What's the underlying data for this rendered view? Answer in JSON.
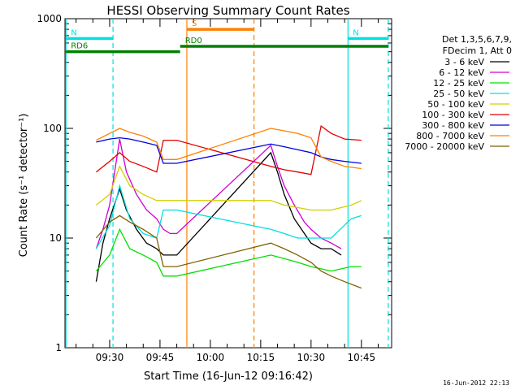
{
  "chart_data": {
    "type": "line",
    "title": "HESSI Observing Summary Count Rates",
    "xlabel": "Start Time (16-Jun-12 09:16:42)",
    "ylabel": "Count Rate (s⁻¹ detector⁻¹)",
    "yscale": "log",
    "ylim": [
      1,
      1000
    ],
    "xlim": [
      "09:16:42",
      "10:54"
    ],
    "x_ticks": [
      "09:30",
      "09:45",
      "10:00",
      "10:15",
      "10:30",
      "10:45"
    ],
    "y_ticks": [
      "1",
      "10",
      "100",
      "1000"
    ],
    "legend_position": "right",
    "legend_header": [
      "Det 1,3,5,6,7,9,",
      "FDecim 1, Att 0"
    ],
    "series": [
      {
        "name": "3 - 6 keV",
        "color": "#000000",
        "x": [
          "09:26",
          "09:28",
          "09:30",
          "09:33",
          "09:35",
          "09:38",
          "09:41",
          "09:44",
          "09:46",
          "09:48",
          "09:50",
          "10:18",
          "10:20",
          "10:22",
          "10:25",
          "10:28",
          "10:30",
          "10:33",
          "10:36",
          "10:39"
        ],
        "values": [
          4,
          9,
          15,
          28,
          18,
          12,
          9,
          8,
          7,
          7,
          7,
          60,
          40,
          25,
          15,
          11,
          9,
          8,
          8,
          7
        ]
      },
      {
        "name": "6 - 12 keV",
        "color": "#d000d0",
        "x": [
          "09:26",
          "09:28",
          "09:30",
          "09:33",
          "09:35",
          "09:38",
          "09:41",
          "09:44",
          "09:46",
          "09:48",
          "09:50",
          "10:18",
          "10:20",
          "10:22",
          "10:25",
          "10:28",
          "10:30",
          "10:33",
          "10:36",
          "10:39"
        ],
        "values": [
          8,
          12,
          20,
          80,
          40,
          25,
          18,
          15,
          12,
          11,
          11,
          70,
          45,
          30,
          20,
          14,
          12,
          10,
          9,
          8
        ]
      },
      {
        "name": "12 - 25 keV",
        "color": "#00e000",
        "x": [
          "09:26",
          "09:30",
          "09:33",
          "09:36",
          "09:40",
          "09:44",
          "09:46",
          "09:50",
          "10:18",
          "10:22",
          "10:26",
          "10:30",
          "10:36",
          "10:42",
          "10:45"
        ],
        "values": [
          5,
          7,
          12,
          8,
          7,
          6,
          4.5,
          4.5,
          7,
          6.5,
          6,
          5.5,
          5,
          5.5,
          5.5
        ]
      },
      {
        "name": "25 - 50 keV",
        "color": "#00e0e0",
        "x": [
          "09:26",
          "09:30",
          "09:33",
          "09:36",
          "09:40",
          "09:44",
          "09:46",
          "09:50",
          "10:18",
          "10:22",
          "10:26",
          "10:30",
          "10:36",
          "10:42",
          "10:45"
        ],
        "values": [
          8,
          13,
          30,
          15,
          11,
          10,
          18,
          18,
          12,
          11,
          10,
          10,
          10,
          15,
          16
        ]
      },
      {
        "name": "50 - 100 keV",
        "color": "#d0d000",
        "x": [
          "09:26",
          "09:30",
          "09:33",
          "09:36",
          "09:40",
          "09:44",
          "09:46",
          "09:50",
          "10:18",
          "10:22",
          "10:26",
          "10:30",
          "10:36",
          "10:42",
          "10:45"
        ],
        "values": [
          20,
          25,
          45,
          30,
          25,
          22,
          22,
          22,
          22,
          20,
          19,
          18,
          18,
          20,
          22
        ]
      },
      {
        "name": "100 - 300 keV",
        "color": "#e00000",
        "x": [
          "09:26",
          "09:30",
          "09:33",
          "09:36",
          "09:40",
          "09:44",
          "09:46",
          "09:50",
          "10:18",
          "10:22",
          "10:26",
          "10:30",
          "10:33",
          "10:36",
          "10:40",
          "10:45"
        ],
        "values": [
          40,
          50,
          60,
          50,
          45,
          40,
          78,
          78,
          45,
          42,
          40,
          38,
          105,
          90,
          80,
          78
        ]
      },
      {
        "name": "300 - 800 keV",
        "color": "#0000e0",
        "x": [
          "09:26",
          "09:30",
          "09:33",
          "09:36",
          "09:40",
          "09:44",
          "09:46",
          "09:50",
          "10:18",
          "10:22",
          "10:26",
          "10:30",
          "10:33",
          "10:36",
          "10:40",
          "10:45"
        ],
        "values": [
          75,
          80,
          82,
          80,
          75,
          70,
          48,
          48,
          72,
          68,
          64,
          60,
          55,
          52,
          50,
          48
        ]
      },
      {
        "name": "800 - 7000 keV",
        "color": "#ff8000",
        "x": [
          "09:26",
          "09:30",
          "09:33",
          "09:36",
          "09:40",
          "09:44",
          "09:46",
          "09:50",
          "10:18",
          "10:22",
          "10:26",
          "10:30",
          "10:33",
          "10:36",
          "10:40",
          "10:45"
        ],
        "values": [
          78,
          90,
          100,
          92,
          85,
          75,
          52,
          52,
          100,
          95,
          90,
          82,
          55,
          50,
          45,
          43
        ]
      },
      {
        "name": "7000 - 20000 keV",
        "color": "#806000",
        "x": [
          "09:26",
          "09:30",
          "09:33",
          "09:36",
          "09:40",
          "09:44",
          "09:46",
          "09:50",
          "10:18",
          "10:22",
          "10:26",
          "10:30",
          "10:33",
          "10:36",
          "10:40",
          "10:45"
        ],
        "values": [
          10,
          14,
          16,
          14,
          12,
          10,
          5.5,
          5.5,
          9,
          8,
          7,
          6,
          5,
          4.5,
          4,
          3.5
        ]
      }
    ],
    "annotations": [
      {
        "label": "N",
        "color": "#00e0e0",
        "level": 660,
        "x": [
          "09:17",
          "09:31"
        ]
      },
      {
        "label": "N",
        "color": "#00e0e0",
        "level": 660,
        "x": [
          "10:41",
          "10:53"
        ]
      },
      {
        "label": "S",
        "color": "#ff8000",
        "level": 800,
        "x": [
          "09:53",
          "10:13"
        ]
      },
      {
        "label": "RD0",
        "color": "#008000",
        "level": 560,
        "x": [
          "09:51",
          "10:53"
        ]
      },
      {
        "label": "RD6",
        "color": "#008000",
        "level": 500,
        "x": [
          "09:17",
          "09:51"
        ]
      }
    ],
    "vlines": [
      {
        "x": "09:17",
        "color": "#00e0e0",
        "style": "solid"
      },
      {
        "x": "09:31",
        "color": "#00e0e0",
        "style": "dashed"
      },
      {
        "x": "09:53",
        "color": "#ff8000",
        "style": "solid"
      },
      {
        "x": "10:13",
        "color": "#ff8000",
        "style": "dashed"
      },
      {
        "x": "10:41",
        "color": "#00e0e0",
        "style": "solid"
      },
      {
        "x": "10:53",
        "color": "#00e0e0",
        "style": "dashed"
      }
    ]
  },
  "footer": {
    "timestamp": "16-Jun-2012 22:13"
  }
}
